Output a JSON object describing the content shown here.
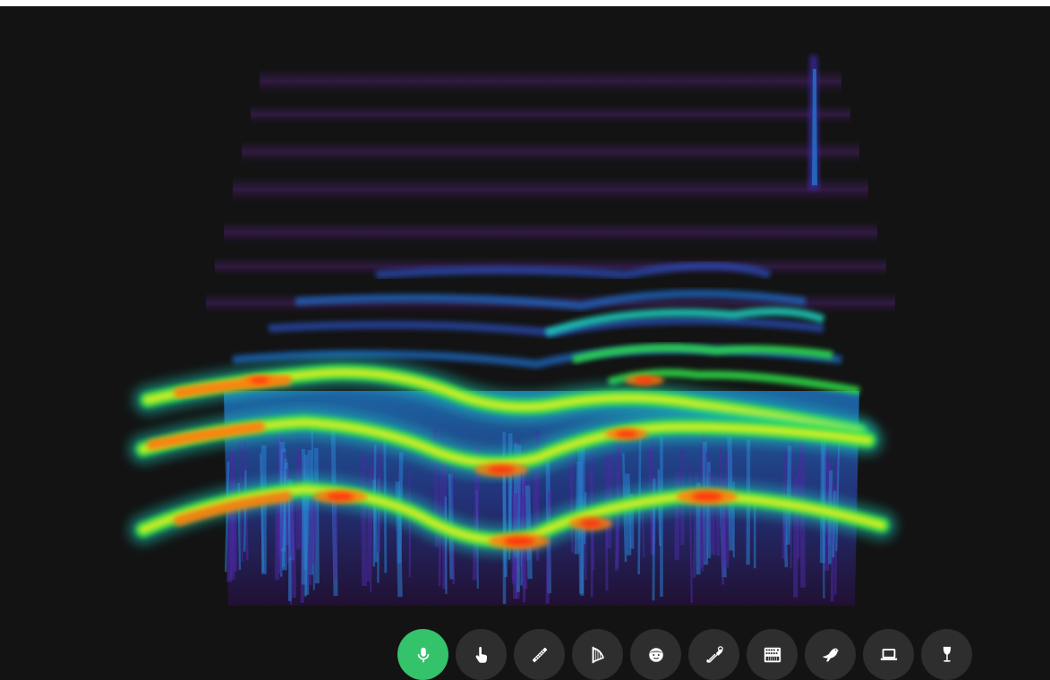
{
  "visualization": {
    "type": "3d-spectrogram",
    "colormap": [
      "#2a0e4a",
      "#3b2aa8",
      "#1f7fd0",
      "#1fd0c0",
      "#2fe04a",
      "#d8f020",
      "#ff7a10",
      "#ff3010"
    ]
  },
  "toolbar": {
    "active_index": 0,
    "active_color": "#34c26b",
    "button_color": "#2e2e2e",
    "items": [
      {
        "icon": "microphone-icon",
        "name": "mic-button",
        "active": true
      },
      {
        "icon": "hand-pointer-icon",
        "name": "touch-button",
        "active": false
      },
      {
        "icon": "flute-icon",
        "name": "flute-button",
        "active": false
      },
      {
        "icon": "harp-icon",
        "name": "harp-button",
        "active": false
      },
      {
        "icon": "face-icon",
        "name": "voice-button",
        "active": false
      },
      {
        "icon": "trombone-icon",
        "name": "trombone-button",
        "active": false
      },
      {
        "icon": "synthesizer-icon",
        "name": "synth-button",
        "active": false
      },
      {
        "icon": "bird-icon",
        "name": "bird-button",
        "active": false
      },
      {
        "icon": "laptop-icon",
        "name": "laptop-button",
        "active": false
      },
      {
        "icon": "wine-glass-icon",
        "name": "wine-glass-button",
        "active": false
      }
    ]
  }
}
